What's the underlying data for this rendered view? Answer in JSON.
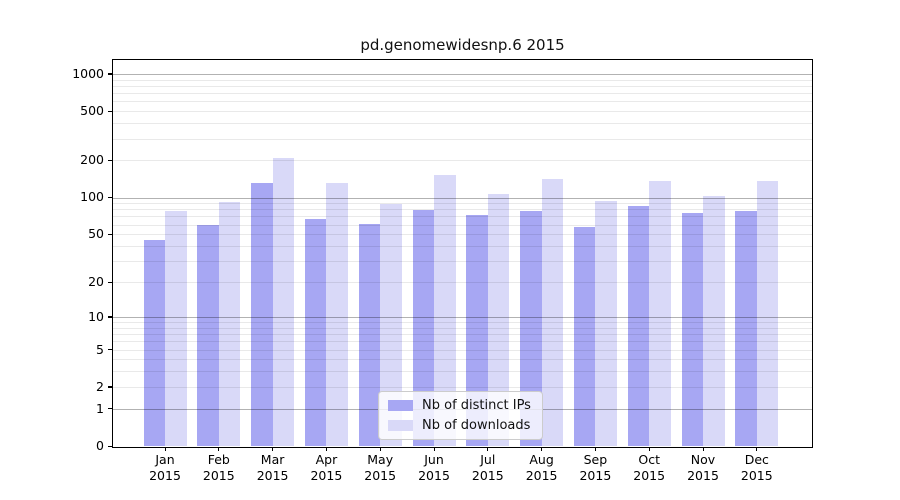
{
  "title": "pd.genomewidesnp.6 2015",
  "chart_data": {
    "type": "bar",
    "title": "pd.genomewidesnp.6 2015",
    "categories": [
      "Jan 2015",
      "Feb 2015",
      "Mar 2015",
      "Apr 2015",
      "May 2015",
      "Jun 2015",
      "Jul 2015",
      "Aug 2015",
      "Sep 2015",
      "Oct 2015",
      "Nov 2015",
      "Dec 2015"
    ],
    "category_lines": [
      {
        "month": "Jan",
        "year": "2015"
      },
      {
        "month": "Feb",
        "year": "2015"
      },
      {
        "month": "Mar",
        "year": "2015"
      },
      {
        "month": "Apr",
        "year": "2015"
      },
      {
        "month": "May",
        "year": "2015"
      },
      {
        "month": "Jun",
        "year": "2015"
      },
      {
        "month": "Jul",
        "year": "2015"
      },
      {
        "month": "Aug",
        "year": "2015"
      },
      {
        "month": "Sep",
        "year": "2015"
      },
      {
        "month": "Oct",
        "year": "2015"
      },
      {
        "month": "Nov",
        "year": "2015"
      },
      {
        "month": "Dec",
        "year": "2015"
      }
    ],
    "series": [
      {
        "name": "Nb of distinct IPs",
        "color": "#a7a7f3",
        "values": [
          45,
          60,
          130,
          67,
          61,
          79,
          72,
          77,
          57,
          85,
          75,
          77
        ]
      },
      {
        "name": "Nb of downloads",
        "color": "#d9d9f8",
        "values": [
          77,
          91,
          208,
          131,
          88,
          152,
          106,
          141,
          93,
          137,
          103,
          136
        ]
      }
    ],
    "yscale": "log1p",
    "yticks": [
      0,
      1,
      2,
      5,
      10,
      20,
      50,
      100,
      200,
      500,
      1000
    ],
    "ylim": [
      0,
      1300
    ],
    "grid": true,
    "grid_major_at": [
      1,
      10,
      100,
      1000
    ],
    "legend_position": "inside-bottom-center",
    "xlabel": "",
    "ylabel": ""
  },
  "legend": {
    "items": [
      {
        "label": "Nb of distinct IPs",
        "color": "#a7a7f3"
      },
      {
        "label": "Nb of downloads",
        "color": "#d9d9f8"
      }
    ]
  },
  "colors": {
    "distinct_ips_bar": "#a7a7f3",
    "downloads_bar": "#d9d9f8",
    "axis": "#000000",
    "background": "#ffffff"
  }
}
